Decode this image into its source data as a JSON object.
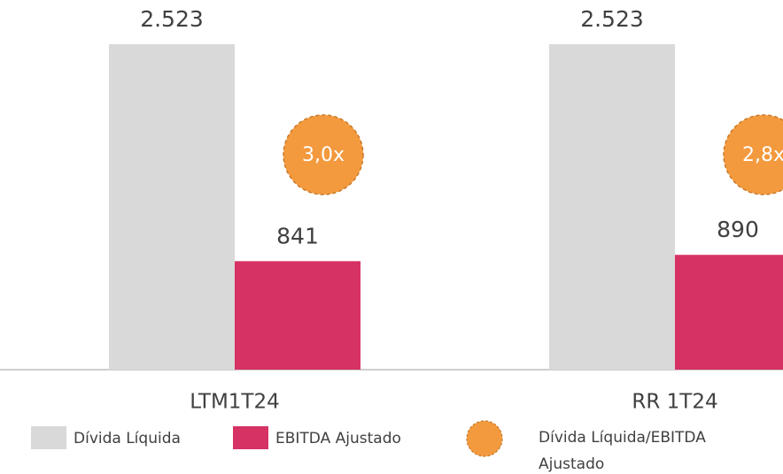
{
  "chart_data": {
    "type": "bar",
    "categories": [
      "LTM1T24",
      "RR 1T24"
    ],
    "series": [
      {
        "name": "Dívida Líquida",
        "color": "#d9d9d9",
        "values": [
          2523,
          2523
        ],
        "value_labels": [
          "2.523",
          "2.523"
        ]
      },
      {
        "name": "EBITDA Ajustado",
        "color": "#d63264",
        "values": [
          841,
          890
        ],
        "value_labels": [
          "841",
          "890"
        ]
      },
      {
        "name": "Dívida Líquida/EBITDA Ajustado",
        "color": "#f39a3e",
        "values": [
          3.0,
          2.8
        ],
        "value_labels": [
          "3,0x",
          "2,8x"
        ]
      }
    ]
  }
}
